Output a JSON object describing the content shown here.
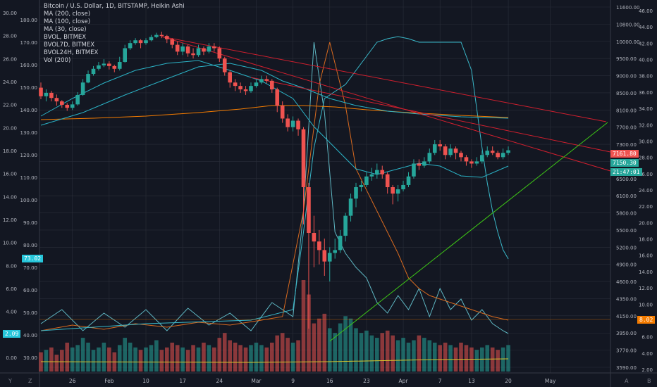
{
  "legend": {
    "title": "Bitcoin / U.S. Dollar, 1D, BITSTAMP, Heikin Ashi",
    "items": [
      "MA (200, close)",
      "MA (100, close)",
      "MA (30, close)",
      "BVOL, BITMEX",
      "BVOL7D, BITMEX",
      "BVOL24H, BITMEX",
      "Vol (200)"
    ]
  },
  "colors": {
    "bg": "#131722",
    "grid": "#2a2e39",
    "up": "#26a69a",
    "down": "#ef5350",
    "ma200": "#f57c00",
    "ma100": "#2bb3c6",
    "ma30": "#2bb3c6",
    "trend_red": "#d01f2e",
    "trend_green": "#3ec716",
    "vol_ma": "#d9c62b",
    "bvol": "#3ab8c9",
    "bvol7d": "#d86a1f",
    "bvol24h": "#5fb8c4",
    "axis_text": "#b2b5be",
    "red_tag": "#ef5350",
    "teal_tag": "#26a69a",
    "cyan_tag": "#26c6da",
    "orange_tag": "#f57c00"
  },
  "tags": {
    "price_a": "7161.80",
    "price_b": "7150.30",
    "countdown": "21:47:01",
    "bvol_right": "8.02",
    "bvol_left": "73.02",
    "left_small": "2.09"
  },
  "footer": {
    "y": "Y",
    "z": "Z",
    "a": "A",
    "b": "B"
  },
  "chart_data": {
    "type": "candlestick",
    "symbol": "BTCUSD",
    "x_ticks": [
      "26",
      "Feb",
      "10",
      "17",
      "24",
      "Mar",
      "9",
      "16",
      "23",
      "Apr",
      "7",
      "13",
      "20",
      "May"
    ],
    "price_axis_ticks": [
      "11600.00",
      "10800.00",
      "10000.00",
      "9500.00",
      "9000.00",
      "8500.00",
      "8100.00",
      "7700.00",
      "7300.00",
      "6900.00",
      "6500.00",
      "6100.00",
      "5800.00",
      "5500.00",
      "5200.00",
      "4900.00",
      "4600.00",
      "4350.00",
      "4150.00",
      "3950.00",
      "3770.00",
      "3590.00"
    ],
    "right_axis_ticks": [
      "46.00",
      "44.00",
      "42.00",
      "40.00",
      "38.00",
      "36.00",
      "34.00",
      "32.00",
      "30.00",
      "28.00",
      "26.00",
      "24.00",
      "22.00",
      "20.00",
      "18.00",
      "16.00",
      "14.00",
      "12.00",
      "10.00",
      "8.00",
      "6.00",
      "4.00",
      "2.00"
    ],
    "left_axis_a_ticks": [
      "30.00",
      "28.00",
      "26.00",
      "24.00",
      "22.00",
      "20.00",
      "18.00",
      "16.00",
      "14.00",
      "12.00",
      "10.00",
      "8.00",
      "6.00",
      "4.00",
      "2.00",
      "0.00"
    ],
    "left_axis_b_ticks": [
      "180.00",
      "170.00",
      "160.00",
      "150.00",
      "140.00",
      "130.00",
      "120.00",
      "110.00",
      "100.00",
      "90.00",
      "80.00",
      "70.00",
      "60.00",
      "50.00",
      "40.00",
      "30.00"
    ],
    "candles": [
      {
        "o": 8650,
        "c": 8420,
        "h": 8800,
        "l": 8350
      },
      {
        "o": 8420,
        "c": 8500,
        "h": 8600,
        "l": 8300
      },
      {
        "o": 8500,
        "c": 8380,
        "h": 8560,
        "l": 8300
      },
      {
        "o": 8380,
        "c": 8300,
        "h": 8460,
        "l": 8200
      },
      {
        "o": 8300,
        "c": 8220,
        "h": 8330,
        "l": 8150
      },
      {
        "o": 8220,
        "c": 8150,
        "h": 8260,
        "l": 8080
      },
      {
        "o": 8150,
        "c": 8230,
        "h": 8300,
        "l": 8100
      },
      {
        "o": 8230,
        "c": 8450,
        "h": 8520,
        "l": 8200
      },
      {
        "o": 8450,
        "c": 8800,
        "h": 8900,
        "l": 8430
      },
      {
        "o": 8800,
        "c": 9050,
        "h": 9150,
        "l": 8780
      },
      {
        "o": 9050,
        "c": 9200,
        "h": 9280,
        "l": 9000
      },
      {
        "o": 9200,
        "c": 9300,
        "h": 9400,
        "l": 9150
      },
      {
        "o": 9300,
        "c": 9350,
        "h": 9480,
        "l": 9250
      },
      {
        "o": 9350,
        "c": 9280,
        "h": 9420,
        "l": 9180
      },
      {
        "o": 9280,
        "c": 9200,
        "h": 9320,
        "l": 9100
      },
      {
        "o": 9200,
        "c": 9400,
        "h": 9550,
        "l": 9150
      },
      {
        "o": 9400,
        "c": 9800,
        "h": 9900,
        "l": 9380
      },
      {
        "o": 9800,
        "c": 9950,
        "h": 10050,
        "l": 9750
      },
      {
        "o": 9950,
        "c": 10050,
        "h": 10150,
        "l": 9900
      },
      {
        "o": 10050,
        "c": 9950,
        "h": 10100,
        "l": 9800
      },
      {
        "o": 9950,
        "c": 10050,
        "h": 10150,
        "l": 9900
      },
      {
        "o": 10050,
        "c": 10200,
        "h": 10300,
        "l": 10000
      },
      {
        "o": 10200,
        "c": 10300,
        "h": 10400,
        "l": 10150
      },
      {
        "o": 10300,
        "c": 10250,
        "h": 10450,
        "l": 10150
      },
      {
        "o": 10250,
        "c": 10100,
        "h": 10300,
        "l": 9950
      },
      {
        "o": 10100,
        "c": 9900,
        "h": 10150,
        "l": 9800
      },
      {
        "o": 9900,
        "c": 9700,
        "h": 10000,
        "l": 9600
      },
      {
        "o": 9700,
        "c": 9850,
        "h": 9950,
        "l": 9600
      },
      {
        "o": 9850,
        "c": 9650,
        "h": 9900,
        "l": 9550
      },
      {
        "o": 9650,
        "c": 9600,
        "h": 9800,
        "l": 9500
      },
      {
        "o": 9600,
        "c": 9800,
        "h": 9900,
        "l": 9550
      },
      {
        "o": 9800,
        "c": 9700,
        "h": 9850,
        "l": 9600
      },
      {
        "o": 9700,
        "c": 9850,
        "h": 9950,
        "l": 9650
      },
      {
        "o": 9850,
        "c": 9800,
        "h": 9950,
        "l": 9700
      },
      {
        "o": 9800,
        "c": 9500,
        "h": 9850,
        "l": 9400
      },
      {
        "o": 9500,
        "c": 9100,
        "h": 9550,
        "l": 9000
      },
      {
        "o": 9100,
        "c": 8800,
        "h": 9150,
        "l": 8650
      },
      {
        "o": 8800,
        "c": 8700,
        "h": 8900,
        "l": 8550
      },
      {
        "o": 8700,
        "c": 8600,
        "h": 8800,
        "l": 8500
      },
      {
        "o": 8600,
        "c": 8550,
        "h": 8700,
        "l": 8450
      },
      {
        "o": 8550,
        "c": 8700,
        "h": 8800,
        "l": 8500
      },
      {
        "o": 8700,
        "c": 8800,
        "h": 8900,
        "l": 8650
      },
      {
        "o": 8800,
        "c": 8900,
        "h": 9000,
        "l": 8750
      },
      {
        "o": 8900,
        "c": 8850,
        "h": 9000,
        "l": 8780
      },
      {
        "o": 8850,
        "c": 8600,
        "h": 8900,
        "l": 8500
      },
      {
        "o": 8600,
        "c": 8200,
        "h": 8650,
        "l": 8050
      },
      {
        "o": 8200,
        "c": 7900,
        "h": 8300,
        "l": 7800
      },
      {
        "o": 7900,
        "c": 7700,
        "h": 8000,
        "l": 7600
      },
      {
        "o": 7700,
        "c": 7850,
        "h": 7950,
        "l": 7600
      },
      {
        "o": 7850,
        "c": 7650,
        "h": 7900,
        "l": 7500
      },
      {
        "o": 7650,
        "c": 6300,
        "h": 7700,
        "l": 5600
      },
      {
        "o": 6300,
        "c": 5450,
        "h": 6400,
        "l": 4000
      },
      {
        "o": 5450,
        "c": 5300,
        "h": 5750,
        "l": 4850
      },
      {
        "o": 5300,
        "c": 5150,
        "h": 5500,
        "l": 4900
      },
      {
        "o": 5150,
        "c": 4950,
        "h": 5350,
        "l": 4700
      },
      {
        "o": 4950,
        "c": 5100,
        "h": 5200,
        "l": 4600
      },
      {
        "o": 5100,
        "c": 5150,
        "h": 5350,
        "l": 5000
      },
      {
        "o": 5150,
        "c": 5400,
        "h": 5500,
        "l": 5100
      },
      {
        "o": 5400,
        "c": 5750,
        "h": 5800,
        "l": 5300
      },
      {
        "o": 5750,
        "c": 6050,
        "h": 6150,
        "l": 5650
      },
      {
        "o": 6050,
        "c": 6300,
        "h": 6400,
        "l": 5900
      },
      {
        "o": 6300,
        "c": 6350,
        "h": 6450,
        "l": 6200
      },
      {
        "o": 6350,
        "c": 6550,
        "h": 6650,
        "l": 6300
      },
      {
        "o": 6550,
        "c": 6600,
        "h": 6750,
        "l": 6450
      },
      {
        "o": 6600,
        "c": 6700,
        "h": 6850,
        "l": 6500
      },
      {
        "o": 6700,
        "c": 6600,
        "h": 6800,
        "l": 6500
      },
      {
        "o": 6600,
        "c": 6300,
        "h": 6650,
        "l": 6150
      },
      {
        "o": 6300,
        "c": 6150,
        "h": 6350,
        "l": 5950
      },
      {
        "o": 6150,
        "c": 6250,
        "h": 6350,
        "l": 6000
      },
      {
        "o": 6250,
        "c": 6350,
        "h": 6450,
        "l": 6200
      },
      {
        "o": 6350,
        "c": 6550,
        "h": 6650,
        "l": 6300
      },
      {
        "o": 6550,
        "c": 6850,
        "h": 6950,
        "l": 6500
      },
      {
        "o": 6850,
        "c": 6800,
        "h": 6950,
        "l": 6700
      },
      {
        "o": 6800,
        "c": 6900,
        "h": 7000,
        "l": 6750
      },
      {
        "o": 6900,
        "c": 7100,
        "h": 7200,
        "l": 6850
      },
      {
        "o": 7100,
        "c": 7300,
        "h": 7400,
        "l": 7050
      },
      {
        "o": 7300,
        "c": 7250,
        "h": 7400,
        "l": 7150
      },
      {
        "o": 7250,
        "c": 7050,
        "h": 7300,
        "l": 6950
      },
      {
        "o": 7050,
        "c": 7200,
        "h": 7300,
        "l": 7000
      },
      {
        "o": 7200,
        "c": 7100,
        "h": 7250,
        "l": 6950
      },
      {
        "o": 7100,
        "c": 7000,
        "h": 7150,
        "l": 6900
      },
      {
        "o": 7000,
        "c": 6900,
        "h": 7050,
        "l": 6800
      },
      {
        "o": 6900,
        "c": 6850,
        "h": 6950,
        "l": 6750
      },
      {
        "o": 6850,
        "c": 6900,
        "h": 7000,
        "l": 6800
      },
      {
        "o": 6900,
        "c": 7050,
        "h": 7150,
        "l": 6850
      },
      {
        "o": 7050,
        "c": 7150,
        "h": 7250,
        "l": 7000
      },
      {
        "o": 7150,
        "c": 7100,
        "h": 7250,
        "l": 7050
      },
      {
        "o": 7100,
        "c": 7000,
        "h": 7150,
        "l": 6950
      },
      {
        "o": 7000,
        "c": 7100,
        "h": 7200,
        "l": 6950
      },
      {
        "o": 7100,
        "c": 7160,
        "h": 7250,
        "l": 7050
      }
    ],
    "volumes": [
      8,
      9,
      10,
      7,
      9,
      12,
      10,
      11,
      14,
      12,
      9,
      10,
      12,
      10,
      8,
      11,
      14,
      12,
      10,
      9,
      10,
      11,
      13,
      9,
      10,
      12,
      11,
      10,
      9,
      11,
      10,
      12,
      11,
      10,
      14,
      16,
      13,
      12,
      11,
      10,
      11,
      12,
      11,
      10,
      12,
      15,
      16,
      14,
      12,
      13,
      38,
      32,
      20,
      22,
      24,
      18,
      16,
      20,
      23,
      22,
      18,
      16,
      17,
      15,
      14,
      16,
      17,
      15,
      13,
      14,
      12,
      13,
      15,
      14,
      13,
      12,
      11,
      12,
      11,
      10,
      12,
      11,
      10,
      9,
      10,
      11,
      10,
      9,
      10,
      11
    ],
    "x_ticks_index": [
      6,
      13,
      20,
      27,
      34,
      41,
      48,
      55,
      62,
      69,
      76,
      82,
      89,
      97
    ],
    "price_range": [
      3500,
      11700
    ],
    "ma200_range_note": "orange MA stays ~8000-8250"
  }
}
